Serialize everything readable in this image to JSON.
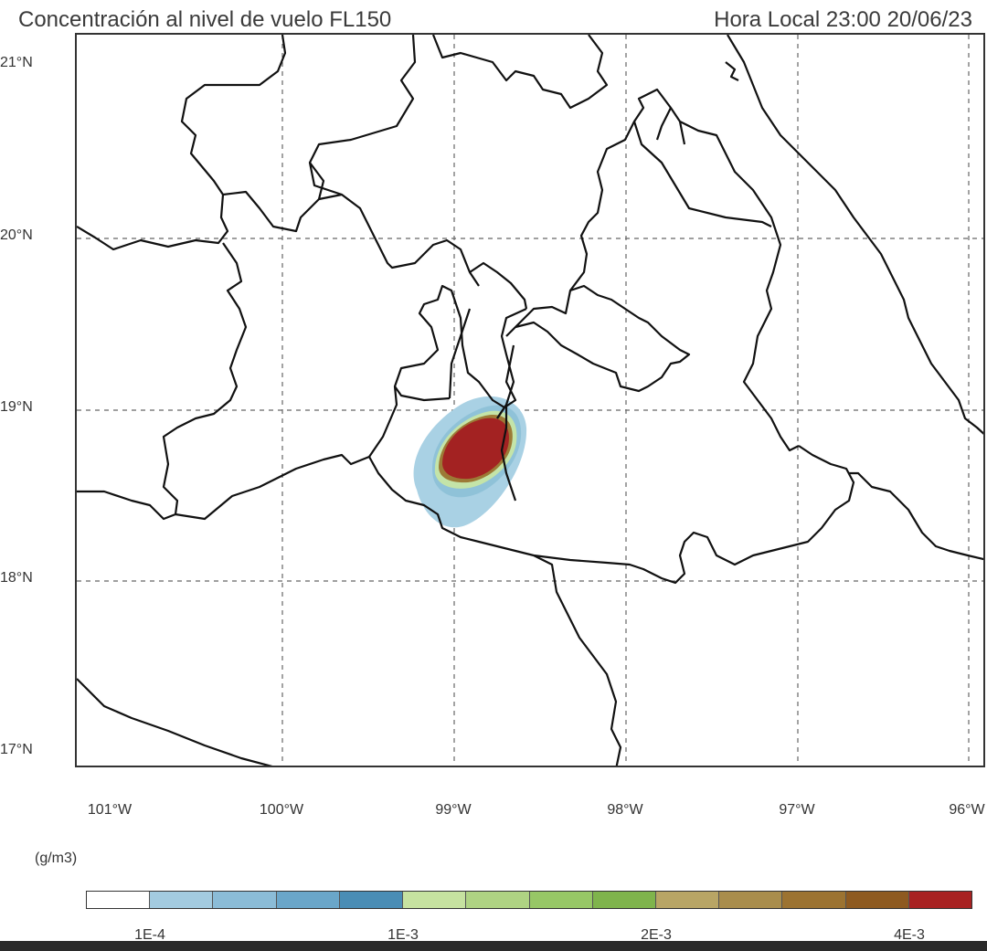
{
  "header": {
    "title": "Concentración al nivel  de vuelo FL150",
    "time": "Hora Local 23:00 20/06/23"
  },
  "axes": {
    "lat_labels": [
      "21°N",
      "20°N",
      "19°N",
      "18°N",
      "17°N"
    ],
    "lon_labels": [
      "101°W",
      "100°W",
      "99°W",
      "98°W",
      "97°W",
      "96°W"
    ]
  },
  "legend": {
    "units": "(g/m3)",
    "tick_labels": [
      "1E-4",
      "1E-3",
      "2E-3",
      "4E-3"
    ],
    "colors": [
      "#ffffff",
      "#a3cbe0",
      "#8bbcd7",
      "#6aa6c9",
      "#4a8db5",
      "#c6e2a0",
      "#afd383",
      "#97c766",
      "#7fb44c",
      "#b8a565",
      "#a98d4c",
      "#9c7331",
      "#8e5a20",
      "#a82222"
    ]
  },
  "plume": {
    "outer_color": "#9fcbe0",
    "mid_color": "#bfe3a6",
    "inner_color": "#a3201f"
  }
}
